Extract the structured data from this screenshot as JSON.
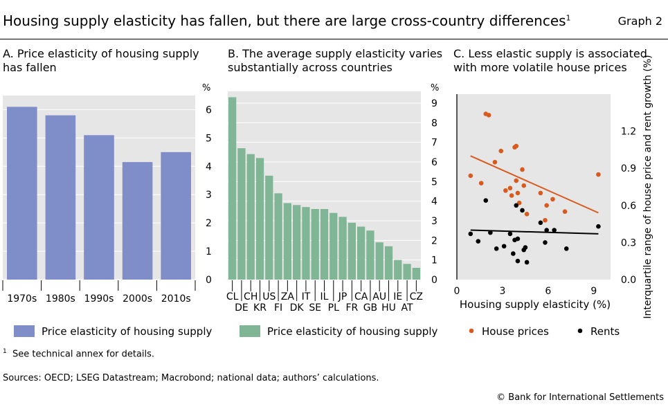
{
  "header": {
    "title": "Housing supply elasticity has fallen, but there are large cross-country differences",
    "title_note": "1",
    "graph_label": "Graph 2"
  },
  "footer": {
    "note_marker": "1",
    "note": "See technical annex for details.",
    "sources": "Sources: OECD; LSEG Datastream; Macrobond; national data; authors’ calculations.",
    "copyright": "© Bank for International Settlements"
  },
  "colors": {
    "blue": "#7f8ec9",
    "green": "#80b596",
    "orange": "#d85a1e",
    "black": "#000000"
  },
  "chart_data": [
    {
      "panel": "A",
      "type": "bar",
      "title": "A. Price elasticity of housing supply has fallen",
      "ylabel": "%",
      "categories": [
        "1970s",
        "1980s",
        "1990s",
        "2000s",
        "2010s"
      ],
      "series": [
        {
          "name": "Price elasticity of housing supply",
          "values": [
            6.1,
            5.8,
            5.1,
            4.15,
            4.5
          ]
        }
      ],
      "ylim": [
        0,
        6.5
      ],
      "yticks": [
        0,
        1,
        2,
        3,
        4,
        5,
        6
      ],
      "grid": true,
      "legend_position": "bottom"
    },
    {
      "panel": "B",
      "type": "bar",
      "title": "B. The average supply elasticity varies substantially across countries",
      "ylabel": "%",
      "categories": [
        "CL",
        "DE",
        "CH",
        "KR",
        "US",
        "FI",
        "ZA",
        "DK",
        "IT",
        "SE",
        "IL",
        "PL",
        "JP",
        "FR",
        "CA",
        "GB",
        "AU",
        "HU",
        "IE",
        "AT",
        "CZ"
      ],
      "top_labels": [
        "CL",
        "CH",
        "US",
        "ZA",
        "IT",
        "IL",
        "JP",
        "CA",
        "AU",
        "IE",
        "CZ"
      ],
      "bottom_labels": [
        "DE",
        "KR",
        "FI",
        "DK",
        "SE",
        "PL",
        "FR",
        "GB",
        "HU",
        "AT"
      ],
      "series": [
        {
          "name": "Price elasticity of housing supply",
          "values": [
            9.3,
            6.7,
            6.4,
            6.2,
            5.3,
            4.4,
            3.9,
            3.8,
            3.7,
            3.6,
            3.6,
            3.4,
            3.2,
            2.9,
            2.7,
            2.5,
            1.9,
            1.7,
            1.0,
            0.8,
            0.6
          ]
        }
      ],
      "ylim": [
        0,
        9.6
      ],
      "yticks": [
        0,
        1,
        2,
        3,
        4,
        5,
        6,
        7,
        8,
        9
      ],
      "grid": true,
      "legend_position": "bottom"
    },
    {
      "panel": "C",
      "type": "scatter",
      "title": "C. Less elastic supply is associated with more volatile house prices",
      "xlabel": "Housing supply elasticity (%)",
      "ylabel": "Interquartile range of house price and rent growth (%)",
      "xlim": [
        0,
        10.1
      ],
      "ylim": [
        0,
        1.5
      ],
      "xticks": [
        0,
        3,
        6,
        9
      ],
      "yticks": [
        0.0,
        0.3,
        0.6,
        0.9,
        1.2
      ],
      "ytick_labels": [
        "0.0",
        "0.3",
        "0.6",
        "0.9",
        "1.2"
      ],
      "series": [
        {
          "name": "House prices",
          "color": "orange",
          "points": [
            [
              0.9,
              0.84
            ],
            [
              1.6,
              0.78
            ],
            [
              1.9,
              1.34
            ],
            [
              2.1,
              1.33
            ],
            [
              2.5,
              0.95
            ],
            [
              2.9,
              1.04
            ],
            [
              3.2,
              0.72
            ],
            [
              3.5,
              0.74
            ],
            [
              3.6,
              0.68
            ],
            [
              3.8,
              1.07
            ],
            [
              3.9,
              1.08
            ],
            [
              3.9,
              0.8
            ],
            [
              4.0,
              0.7
            ],
            [
              4.1,
              0.62
            ],
            [
              4.3,
              0.89
            ],
            [
              4.4,
              0.76
            ],
            [
              4.6,
              0.53
            ],
            [
              5.5,
              0.7
            ],
            [
              5.8,
              0.48
            ],
            [
              5.9,
              0.6
            ],
            [
              6.3,
              0.65
            ],
            [
              7.1,
              0.55
            ],
            [
              9.3,
              0.85
            ]
          ],
          "trend": [
            [
              0.9,
              1.0
            ],
            [
              9.3,
              0.54
            ]
          ]
        },
        {
          "name": "Rents",
          "color": "black",
          "points": [
            [
              0.9,
              0.37
            ],
            [
              1.4,
              0.31
            ],
            [
              1.9,
              0.64
            ],
            [
              2.2,
              0.38
            ],
            [
              2.6,
              0.25
            ],
            [
              3.1,
              0.27
            ],
            [
              3.5,
              0.37
            ],
            [
              3.7,
              0.21
            ],
            [
              3.8,
              0.32
            ],
            [
              3.9,
              0.6
            ],
            [
              4.0,
              0.33
            ],
            [
              4.0,
              0.15
            ],
            [
              4.3,
              0.56
            ],
            [
              4.4,
              0.24
            ],
            [
              4.5,
              0.26
            ],
            [
              4.6,
              0.14
            ],
            [
              5.5,
              0.46
            ],
            [
              5.8,
              0.3
            ],
            [
              5.9,
              0.4
            ],
            [
              6.4,
              0.4
            ],
            [
              7.2,
              0.25
            ],
            [
              9.3,
              0.43
            ]
          ],
          "trend": [
            [
              0.9,
              0.4
            ],
            [
              9.3,
              0.37
            ]
          ]
        }
      ],
      "legend_position": "bottom"
    }
  ]
}
